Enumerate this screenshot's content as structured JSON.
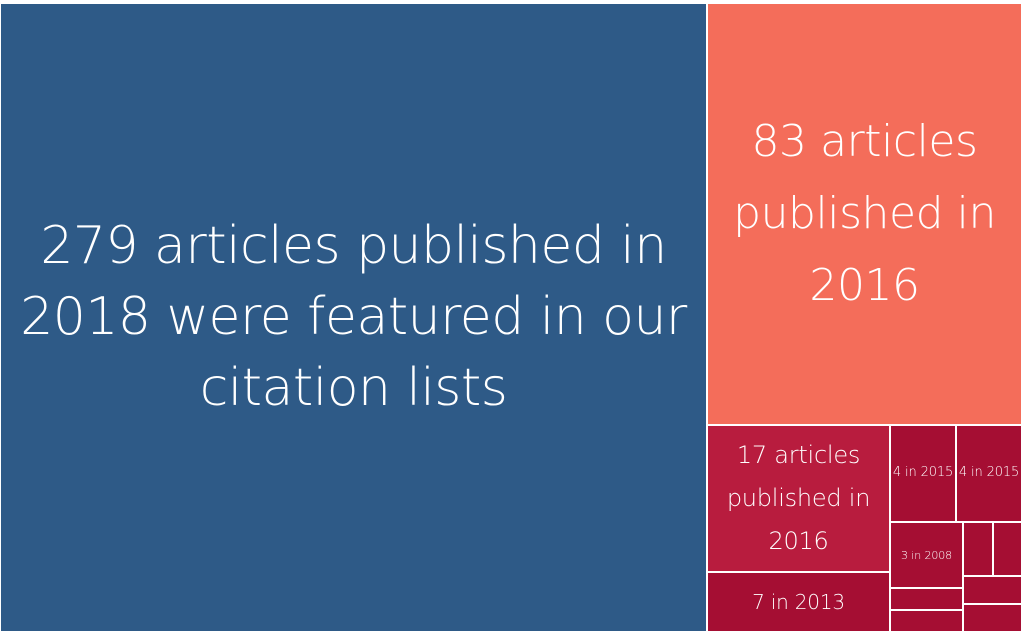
{
  "chart_data": {
    "type": "treemap",
    "title": "",
    "colors": {
      "2018": "#2e5a87",
      "2016_large": "#f46d5a",
      "2016_small": "#b81c3e",
      "other": "#a50e33"
    },
    "tiles": [
      {
        "id": "tile-2018",
        "label": "279 articles published in 2018 were featured in our citation lists",
        "value": 279,
        "year": 2018
      },
      {
        "id": "tile-2016-a",
        "label": "83 articles published in 2016",
        "value": 83,
        "year": 2016
      },
      {
        "id": "tile-2016-b",
        "label": "17 articles published in 2016",
        "value": 17,
        "year": 2016
      },
      {
        "id": "tile-2013",
        "label": "7 in 2013",
        "value": 7,
        "year": 2013
      },
      {
        "id": "tile-2015-a",
        "label": "4 in 2015",
        "value": 4,
        "year": 2015
      },
      {
        "id": "tile-2015-b",
        "label": "4 in 2015",
        "value": 4,
        "year": 2015
      },
      {
        "id": "tile-2008",
        "label": "3 in 2008",
        "value": 3,
        "year": 2008
      }
    ]
  }
}
